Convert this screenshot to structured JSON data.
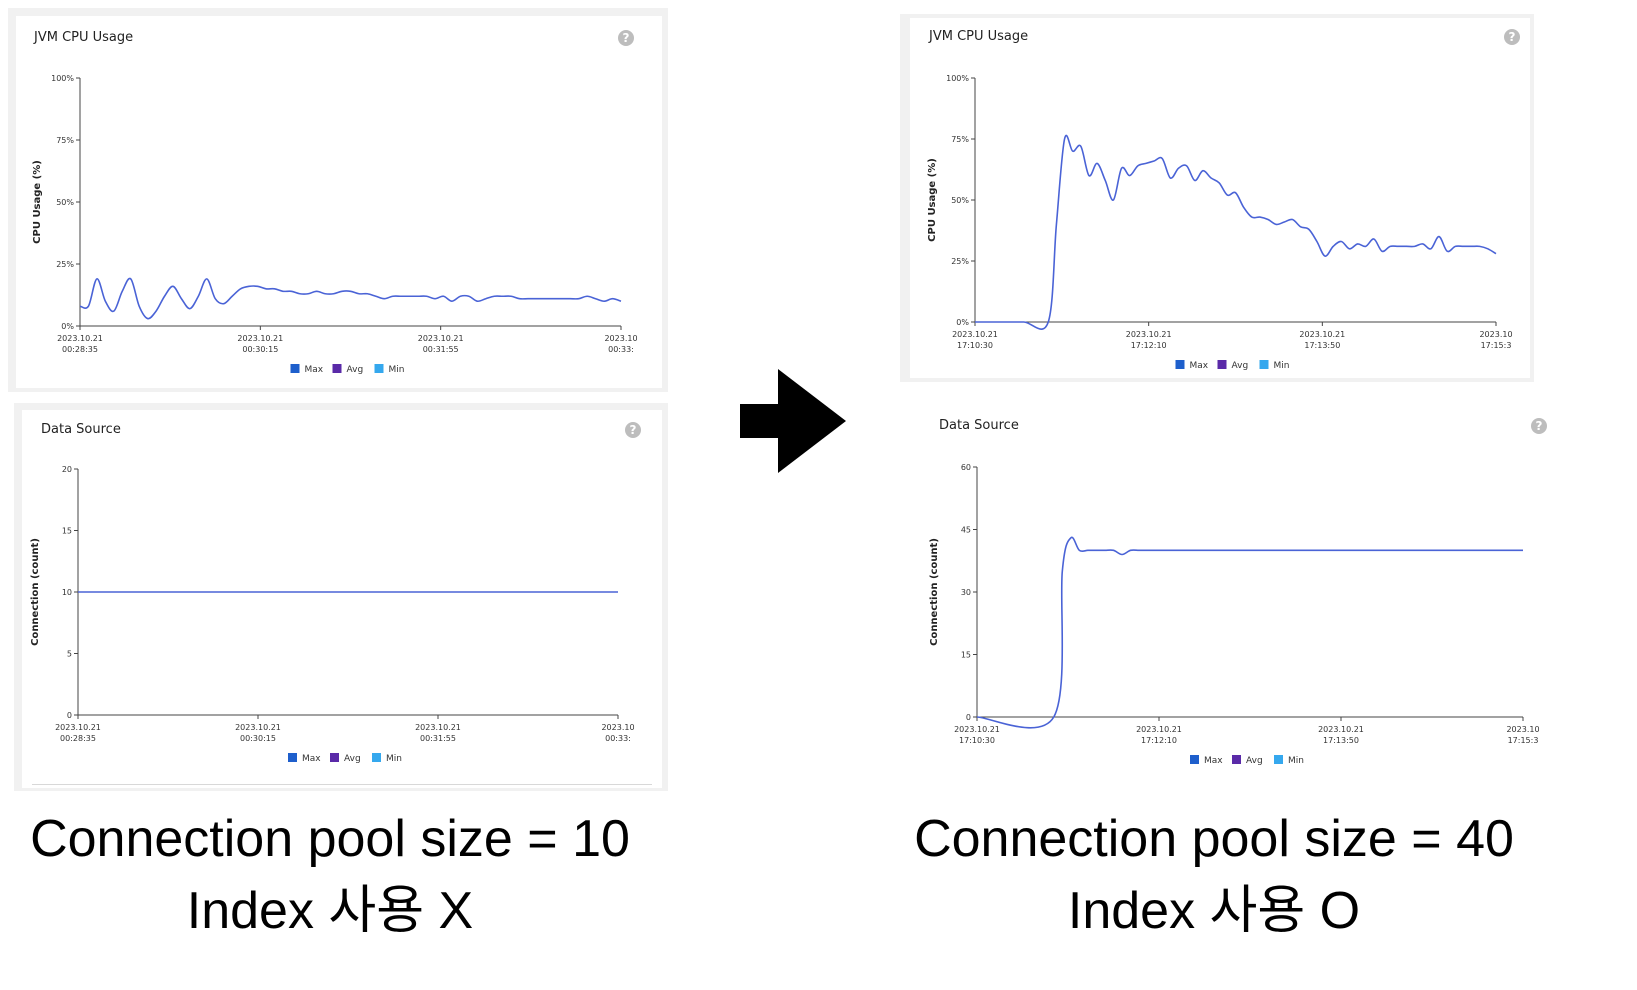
{
  "left": {
    "cpu_title": "JVM CPU Usage",
    "ds_title": "Data Source",
    "caption_line1": "Connection pool size = 10",
    "caption_line2": "Index 사용 X"
  },
  "right": {
    "cpu_title": "JVM CPU Usage",
    "ds_title": "Data Source",
    "caption_line1": "Connection pool size = 40",
    "caption_line2": "Index 사용 O"
  },
  "help_glyph": "?",
  "colors": {
    "max": "#1e5fcc",
    "avg": "#5a2aa8",
    "min": "#35a8ee",
    "line": "#4a63d6"
  },
  "chart_data": [
    {
      "id": "left-cpu",
      "type": "line",
      "title": "JVM CPU Usage",
      "ylabel": "CPU Usage (%)",
      "ylim": [
        0,
        100
      ],
      "yticks": [
        "0%",
        "25%",
        "50%",
        "75%",
        "100%"
      ],
      "xticks": [
        [
          "2023.10.21",
          "00:28:35"
        ],
        [
          "2023.10.21",
          "00:30:15"
        ],
        [
          "2023.10.21",
          "00:31:55"
        ],
        [
          "2023.10",
          "00:33:"
        ]
      ],
      "legend": [
        "Max",
        "Avg",
        "Min"
      ],
      "grid": false,
      "x": [
        0,
        1,
        2,
        3,
        4,
        5,
        6,
        7,
        8,
        9,
        10,
        11,
        12,
        13,
        14,
        15,
        16,
        17,
        18,
        19,
        20,
        21,
        22,
        23,
        24,
        25,
        26,
        27,
        28,
        29,
        30,
        31,
        32,
        33,
        34,
        35,
        36,
        37,
        38,
        39,
        40,
        41,
        42,
        43,
        44,
        45,
        46,
        47,
        48,
        49,
        50,
        51,
        52,
        53,
        54,
        55,
        56,
        57,
        58,
        59,
        60,
        61,
        62,
        63,
        64
      ],
      "series": [
        {
          "values": [
            8,
            8,
            19,
            10,
            6,
            14,
            19,
            8,
            3,
            6,
            12,
            16,
            11,
            7,
            12,
            19,
            11,
            9,
            12,
            15,
            16,
            16,
            15,
            15,
            14,
            14,
            13,
            13,
            14,
            13,
            13,
            14,
            14,
            13,
            13,
            12,
            11,
            12,
            12,
            12,
            12,
            12,
            11,
            12,
            10,
            12,
            12,
            10,
            11,
            12,
            12,
            12,
            11,
            11,
            11,
            11,
            11,
            11,
            11,
            11,
            12,
            11,
            10,
            11,
            10
          ]
        }
      ]
    },
    {
      "id": "left-ds",
      "type": "line",
      "title": "Data Source",
      "ylabel": "Connection (count)",
      "ylim": [
        0,
        20
      ],
      "yticks": [
        "0",
        "5",
        "10",
        "15",
        "20"
      ],
      "xticks": [
        [
          "2023.10.21",
          "00:28:35"
        ],
        [
          "2023.10.21",
          "00:30:15"
        ],
        [
          "2023.10.21",
          "00:31:55"
        ],
        [
          "2023.10",
          "00:33:"
        ]
      ],
      "legend": [
        "Max",
        "Avg",
        "Min"
      ],
      "grid": false,
      "x": [
        0,
        64
      ],
      "series": [
        {
          "values": [
            10,
            10
          ]
        }
      ]
    },
    {
      "id": "right-cpu",
      "type": "line",
      "title": "JVM CPU Usage",
      "ylabel": "CPU Usage (%)",
      "ylim": [
        0,
        100
      ],
      "yticks": [
        "0%",
        "25%",
        "50%",
        "75%",
        "100%"
      ],
      "xticks": [
        [
          "2023.10.21",
          "17:10:30"
        ],
        [
          "2023.10.21",
          "17:12:10"
        ],
        [
          "2023.10.21",
          "17:13:50"
        ],
        [
          "2023.10",
          "17:15:3"
        ]
      ],
      "legend": [
        "Max",
        "Avg",
        "Min"
      ],
      "grid": false,
      "x": [
        0,
        3,
        6,
        9,
        10,
        11,
        12,
        13,
        14,
        15,
        16,
        17,
        18,
        19,
        20,
        21,
        22,
        23,
        24,
        25,
        26,
        27,
        28,
        29,
        30,
        31,
        32,
        33,
        34,
        35,
        36,
        37,
        38,
        39,
        40,
        41,
        42,
        43,
        44,
        45,
        46,
        47,
        48,
        49,
        50,
        51,
        52,
        53,
        54,
        55,
        56,
        57,
        58,
        59,
        60,
        61,
        62,
        63,
        64
      ],
      "series": [
        {
          "values": [
            0,
            0,
            0,
            0,
            40,
            75,
            70,
            72,
            60,
            65,
            58,
            50,
            63,
            60,
            64,
            65,
            66,
            67,
            59,
            63,
            64,
            58,
            62,
            59,
            57,
            52,
            53,
            47,
            43,
            43,
            42,
            40,
            41,
            42,
            39,
            38,
            33,
            27,
            31,
            33,
            30,
            32,
            31,
            34,
            29,
            31,
            31,
            31,
            31,
            32,
            30,
            35,
            29,
            31,
            31,
            31,
            31,
            30,
            28
          ]
        }
      ]
    },
    {
      "id": "right-ds",
      "type": "line",
      "title": "Data Source",
      "ylabel": "Connection (count)",
      "ylim": [
        0,
        60
      ],
      "yticks": [
        "0",
        "15",
        "30",
        "45",
        "60"
      ],
      "xticks": [
        [
          "2023.10.21",
          "17:10:30"
        ],
        [
          "2023.10.21",
          "17:12:10"
        ],
        [
          "2023.10.21",
          "17:13:50"
        ],
        [
          "2023.10",
          "17:15:3"
        ]
      ],
      "legend": [
        "Max",
        "Avg",
        "Min"
      ],
      "grid": false,
      "x": [
        0,
        9,
        10,
        11,
        12,
        13,
        14,
        15,
        16,
        17,
        18,
        19,
        20,
        30,
        64
      ],
      "series": [
        {
          "values": [
            0,
            0,
            35,
            43,
            40,
            40,
            40,
            40,
            40,
            39,
            40,
            40,
            40,
            40,
            40
          ]
        }
      ]
    }
  ]
}
